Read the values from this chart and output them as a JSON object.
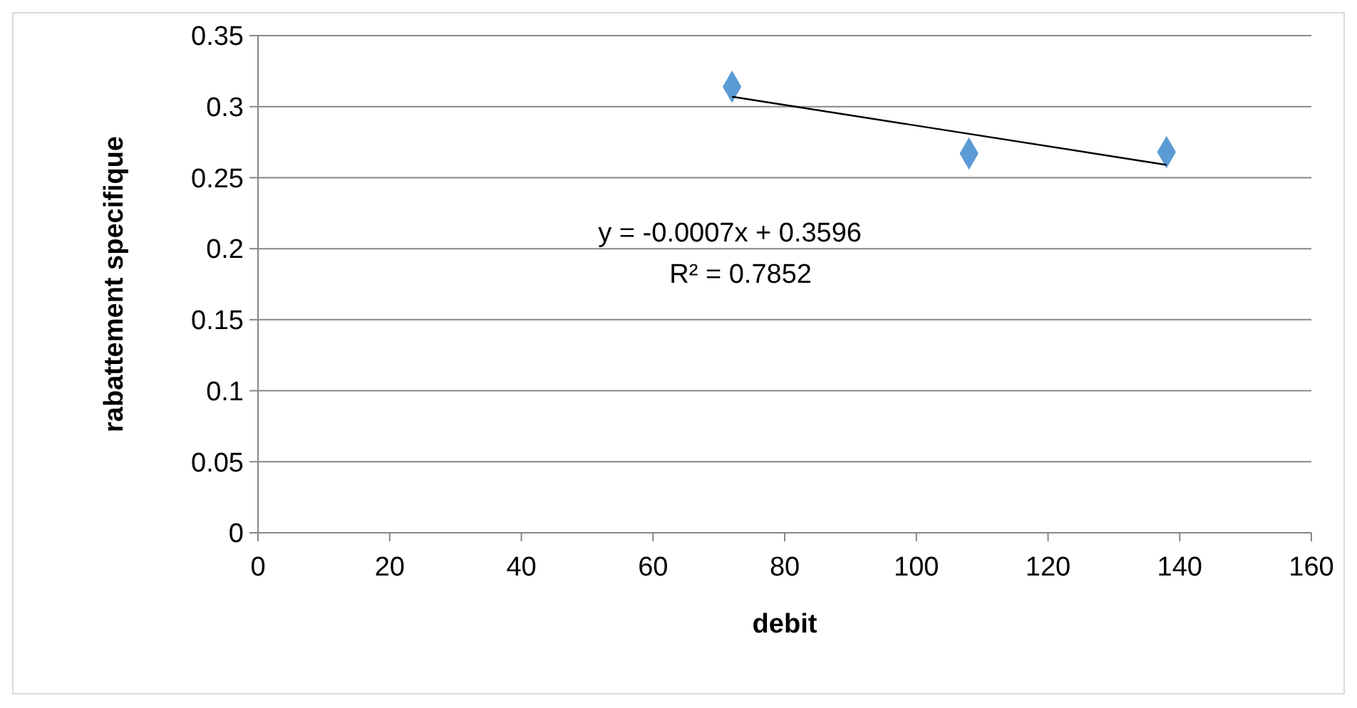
{
  "chart_data": {
    "type": "scatter",
    "xlabel": "debit",
    "ylabel": "rabattement specifique",
    "xlim": [
      0,
      160
    ],
    "xticks": [
      0,
      20,
      40,
      60,
      80,
      100,
      120,
      140,
      160
    ],
    "ylim": [
      0,
      0.35
    ],
    "yticks": [
      0,
      0.05,
      0.1,
      0.15,
      0.2,
      0.25,
      0.3,
      0.35
    ],
    "grid": "y",
    "series": [
      {
        "color": "#5b9bd5",
        "marker": "diamond",
        "x": [
          72,
          108,
          138
        ],
        "values": [
          0.314,
          0.267,
          0.268
        ]
      },
      {
        "type": "line",
        "color": "#000000",
        "marker": "none",
        "line_style": "solid",
        "x": [
          72,
          138
        ],
        "values": [
          0.307,
          0.259
        ]
      }
    ],
    "annotations": [
      "y = -0.0007x + 0.3596",
      "R² = 0.7852"
    ]
  }
}
